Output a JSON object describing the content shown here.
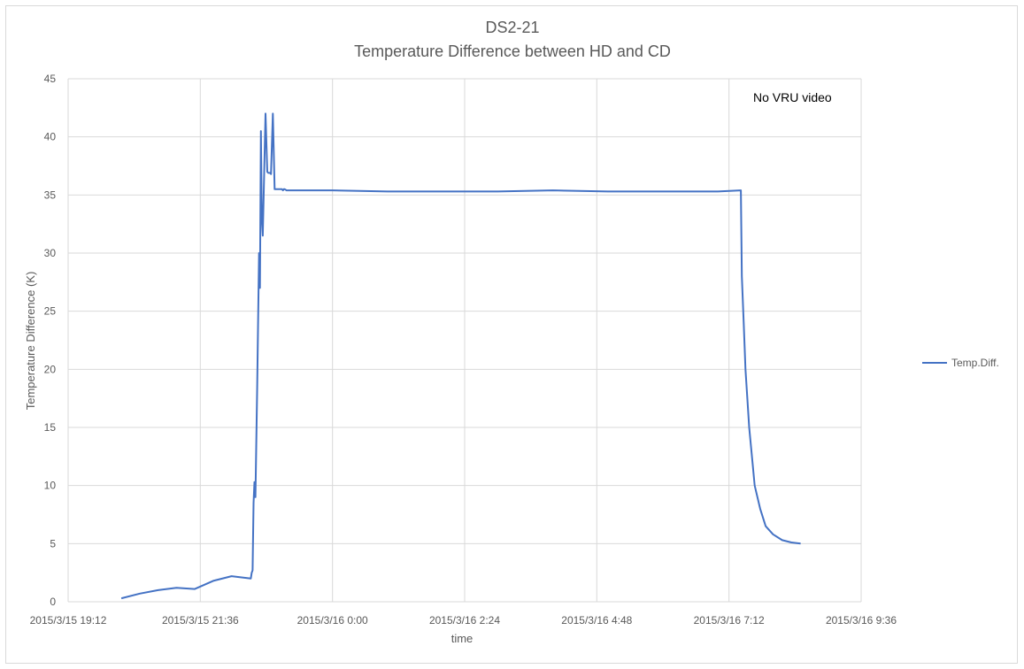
{
  "chart_data": {
    "type": "line",
    "title": "DS2-21",
    "subtitle": "Temperature Difference between HD and CD",
    "xlabel": "time",
    "ylabel": "Temperature Difference (K)",
    "ylim": [
      0,
      45
    ],
    "yticks": [
      0,
      5,
      10,
      15,
      20,
      25,
      30,
      35,
      40,
      45
    ],
    "xlim": [
      "2015/3/15 19:12",
      "2015/3/16 9:36"
    ],
    "xtick_labels": [
      "2015/3/15 19:12",
      "2015/3/15 21:36",
      "2015/3/16 0:00",
      "2015/3/16 2:24",
      "2015/3/16 4:48",
      "2015/3/16 7:12",
      "2015/3/16 9:36"
    ],
    "grid": true,
    "legend_position": "right",
    "annotation": "No VRU video",
    "series": [
      {
        "name": "Temp.Diff.",
        "color": "#4472c4",
        "x": [
          "2015/3/15 20:10",
          "2015/3/15 20:30",
          "2015/3/15 20:50",
          "2015/3/15 21:10",
          "2015/3/15 21:30",
          "2015/3/15 21:50",
          "2015/3/15 22:10",
          "2015/3/15 22:20",
          "2015/3/15 22:31",
          "2015/3/15 22:32",
          "2015/3/15 22:33",
          "2015/3/15 22:34",
          "2015/3/15 22:35",
          "2015/3/15 22:36",
          "2015/3/15 22:38",
          "2015/3/15 22:40",
          "2015/3/15 22:41",
          "2015/3/15 22:42",
          "2015/3/15 22:43",
          "2015/3/15 22:44",
          "2015/3/15 22:47",
          "2015/3/15 22:49",
          "2015/3/15 22:50",
          "2015/3/15 22:51",
          "2015/3/15 22:52",
          "2015/3/15 22:53",
          "2015/3/15 22:55",
          "2015/3/15 22:57",
          "2015/3/15 23:00",
          "2015/3/15 23:05",
          "2015/3/15 23:06",
          "2015/3/15 23:07",
          "2015/3/15 23:08",
          "2015/3/15 23:10",
          "2015/3/15 23:15",
          "2015/3/15 23:30",
          "2015/3/16 0:00",
          "2015/3/16 1:00",
          "2015/3/16 2:00",
          "2015/3/16 3:00",
          "2015/3/16 4:00",
          "2015/3/16 5:00",
          "2015/3/16 6:00",
          "2015/3/16 7:00",
          "2015/3/16 7:25",
          "2015/3/16 7:26",
          "2015/3/16 7:28",
          "2015/3/16 7:30",
          "2015/3/16 7:34",
          "2015/3/16 7:40",
          "2015/3/16 7:46",
          "2015/3/16 7:52",
          "2015/3/16 8:00",
          "2015/3/16 8:10",
          "2015/3/16 8:20",
          "2015/3/16 8:30"
        ],
        "y": [
          0.3,
          0.7,
          1.0,
          1.2,
          1.1,
          1.8,
          2.2,
          2.1,
          2.0,
          2.5,
          2.7,
          8.5,
          10.3,
          9.0,
          18.5,
          30.0,
          27.0,
          40.5,
          33.0,
          31.5,
          42.0,
          37.0,
          36.9,
          36.9,
          36.9,
          36.8,
          42.0,
          35.5,
          35.5,
          35.5,
          35.4,
          35.5,
          35.5,
          35.4,
          35.4,
          35.4,
          35.4,
          35.3,
          35.3,
          35.3,
          35.4,
          35.3,
          35.3,
          35.3,
          35.4,
          28.0,
          24.0,
          20.0,
          15.0,
          10.0,
          8.0,
          6.5,
          5.8,
          5.3,
          5.1,
          5.0
        ]
      }
    ]
  }
}
